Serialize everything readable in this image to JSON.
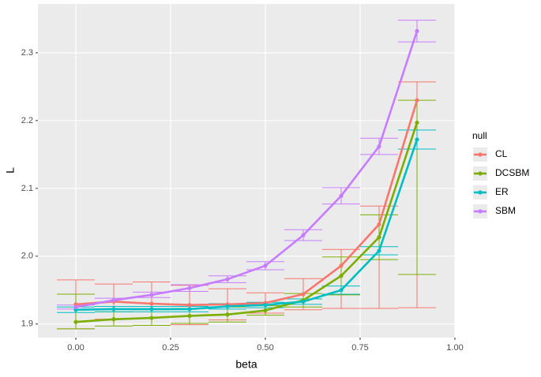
{
  "chart_data": {
    "type": "line",
    "x_label": "beta",
    "y_label": "L",
    "legend_title": "null",
    "x": [
      0,
      0.1,
      0.2,
      0.3,
      0.4,
      0.5,
      0.6,
      0.7,
      0.8,
      0.9
    ],
    "xlim": [
      -0.1,
      1.0
    ],
    "xticks": [
      {
        "value": 0,
        "label": "0.00"
      },
      {
        "value": 0.25,
        "label": "0.25"
      },
      {
        "value": 0.5,
        "label": "0.50"
      },
      {
        "value": 0.75,
        "label": "0.75"
      },
      {
        "value": 1,
        "label": "1.00"
      }
    ],
    "ylim": [
      1.88,
      2.372
    ],
    "yticks": [
      1.9,
      {
        "value": 2.0,
        "label": "2.0"
      },
      2.1,
      2.2,
      2.3
    ],
    "grid": true,
    "legend_position": "right",
    "series": [
      {
        "name": "CL",
        "color": "#F8766D",
        "values": [
          1.929,
          1.933,
          1.93,
          1.928,
          1.929,
          1.931,
          1.944,
          1.986,
          2.047,
          2.23
        ],
        "ymin": [
          1.893,
          1.907,
          1.898,
          1.899,
          1.906,
          1.916,
          1.921,
          1.923,
          1.923,
          1.924
        ],
        "ymax": [
          1.965,
          1.959,
          1.962,
          1.957,
          1.952,
          1.946,
          1.967,
          2.01,
          2.074,
          2.257
        ]
      },
      {
        "name": "DCSBM",
        "color": "#7CAE00",
        "values": [
          1.903,
          1.907,
          1.909,
          1.912,
          1.914,
          1.92,
          1.935,
          1.971,
          2.028,
          2.197
        ],
        "ymin": [
          1.893,
          1.897,
          1.898,
          1.901,
          1.903,
          1.913,
          1.925,
          1.943,
          1.995,
          1.973
        ],
        "ymax": [
          1.944,
          1.918,
          1.921,
          1.923,
          1.925,
          1.927,
          1.945,
          1.999,
          2.061,
          2.23
        ]
      },
      {
        "name": "ER",
        "color": "#00BFC4",
        "values": [
          1.921,
          1.922,
          1.922,
          1.922,
          1.926,
          1.928,
          1.933,
          1.95,
          2.008,
          2.172
        ],
        "ymin": [
          1.917,
          1.918,
          1.918,
          1.918,
          1.922,
          1.924,
          1.929,
          1.944,
          2.002,
          2.158
        ],
        "ymax": [
          1.925,
          1.926,
          1.926,
          1.926,
          1.93,
          1.932,
          1.937,
          1.956,
          2.014,
          2.186
        ]
      },
      {
        "name": "SBM",
        "color": "#C77CFF",
        "values": [
          1.925,
          1.935,
          1.943,
          1.953,
          1.966,
          1.986,
          2.031,
          2.089,
          2.162,
          2.332
        ],
        "ymin": [
          1.922,
          1.932,
          1.939,
          1.948,
          1.961,
          1.98,
          2.023,
          2.077,
          2.15,
          2.316
        ],
        "ymax": [
          1.928,
          1.938,
          1.947,
          1.958,
          1.971,
          1.992,
          2.039,
          2.101,
          2.174,
          2.348
        ]
      }
    ]
  }
}
